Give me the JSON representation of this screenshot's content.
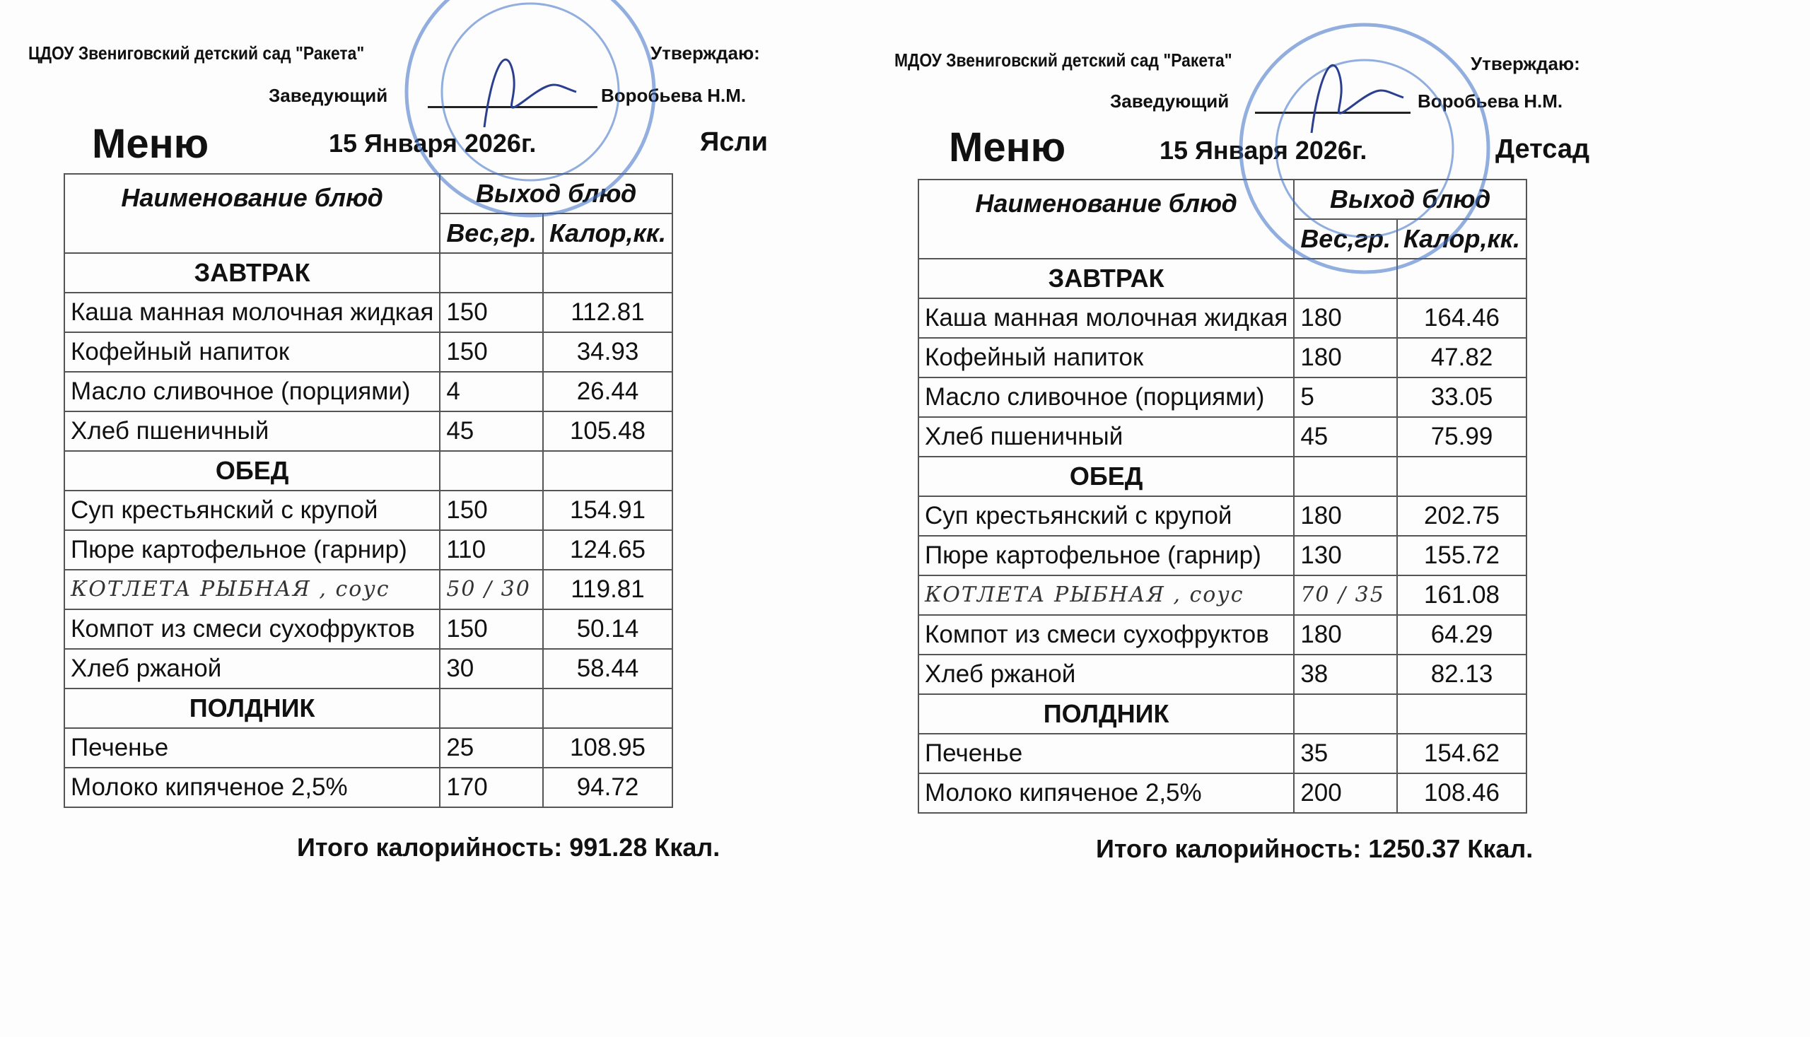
{
  "menus": [
    {
      "org": "ЦДОУ Звениговский детский сад \"Ракета\"",
      "approve": "Утверждаю:",
      "head_label": "Заведующий",
      "head_name": "Воробьева Н.М.",
      "title": "Меню",
      "date": "15 Января 2026г.",
      "group": "Ясли",
      "columns": {
        "name": "Наименование блюд",
        "output": "Выход блюд",
        "weight": "Вес,гр.",
        "calories": "Калор,кк."
      },
      "rows": [
        {
          "section": "ЗАВТРАК"
        },
        {
          "name": "Каша манная молочная жидкая",
          "weight": "150",
          "calories": "112.81"
        },
        {
          "name": "Кофейный напиток",
          "weight": "150",
          "calories": "34.93"
        },
        {
          "name": "Масло сливочное (порциями)",
          "weight": "4",
          "calories": "26.44"
        },
        {
          "name": "Хлеб пшеничный",
          "weight": "45",
          "calories": "105.48"
        },
        {
          "section": "ОБЕД"
        },
        {
          "name": "Суп крестьянский с крупой",
          "weight": "150",
          "calories": "154.91"
        },
        {
          "name": "Пюре картофельное (гарнир)",
          "weight": "110",
          "calories": "124.65"
        },
        {
          "name": "КОТЛЕТА РЫБНАЯ , соус",
          "weight": "50 / 30",
          "calories": "119.81",
          "handwritten": true
        },
        {
          "name": "Компот из смеси сухофруктов",
          "weight": "150",
          "calories": "50.14"
        },
        {
          "name": "Хлеб ржаной",
          "weight": "30",
          "calories": "58.44"
        },
        {
          "section": "ПОЛДНИК"
        },
        {
          "name": "Печенье",
          "weight": "25",
          "calories": "108.95"
        },
        {
          "name": "Молоко кипяченое 2,5%",
          "weight": "170",
          "calories": "94.72"
        }
      ],
      "total": "Итого калорийность:  991.28 Ккал."
    },
    {
      "org": "МДОУ Звениговский детский сад \"Ракета\"",
      "approve": "Утверждаю:",
      "head_label": "Заведующий",
      "head_name": "Воробьева Н.М.",
      "title": "Меню",
      "date": "15 Января 2026г.",
      "group": "Детсад",
      "columns": {
        "name": "Наименование блюд",
        "output": "Выход блюд",
        "weight": "Вес,гр.",
        "calories": "Калор,кк."
      },
      "rows": [
        {
          "section": "ЗАВТРАК"
        },
        {
          "name": "Каша манная молочная жидкая",
          "weight": "180",
          "calories": "164.46"
        },
        {
          "name": "Кофейный напиток",
          "weight": "180",
          "calories": "47.82"
        },
        {
          "name": "Масло сливочное (порциями)",
          "weight": "5",
          "calories": "33.05"
        },
        {
          "name": "Хлеб пшеничный",
          "weight": "45",
          "calories": "75.99"
        },
        {
          "section": "ОБЕД"
        },
        {
          "name": "Суп крестьянский с крупой",
          "weight": "180",
          "calories": "202.75"
        },
        {
          "name": "Пюре картофельное (гарнир)",
          "weight": "130",
          "calories": "155.72"
        },
        {
          "name": "КОТЛЕТА РЫБНАЯ , соус",
          "weight": "70 / 35",
          "calories": "161.08",
          "handwritten": true
        },
        {
          "name": "Компот из смеси сухофруктов",
          "weight": "180",
          "calories": "64.29"
        },
        {
          "name": "Хлеб ржаной",
          "weight": "38",
          "calories": "82.13"
        },
        {
          "section": "ПОЛДНИК"
        },
        {
          "name": "Печенье",
          "weight": "35",
          "calories": "154.62"
        },
        {
          "name": "Молоко кипяченое 2,5%",
          "weight": "200",
          "calories": "108.46"
        }
      ],
      "total": "Итого калорийность: 1250.37 Ккал."
    }
  ],
  "stamp_color": "#3a6fc8"
}
